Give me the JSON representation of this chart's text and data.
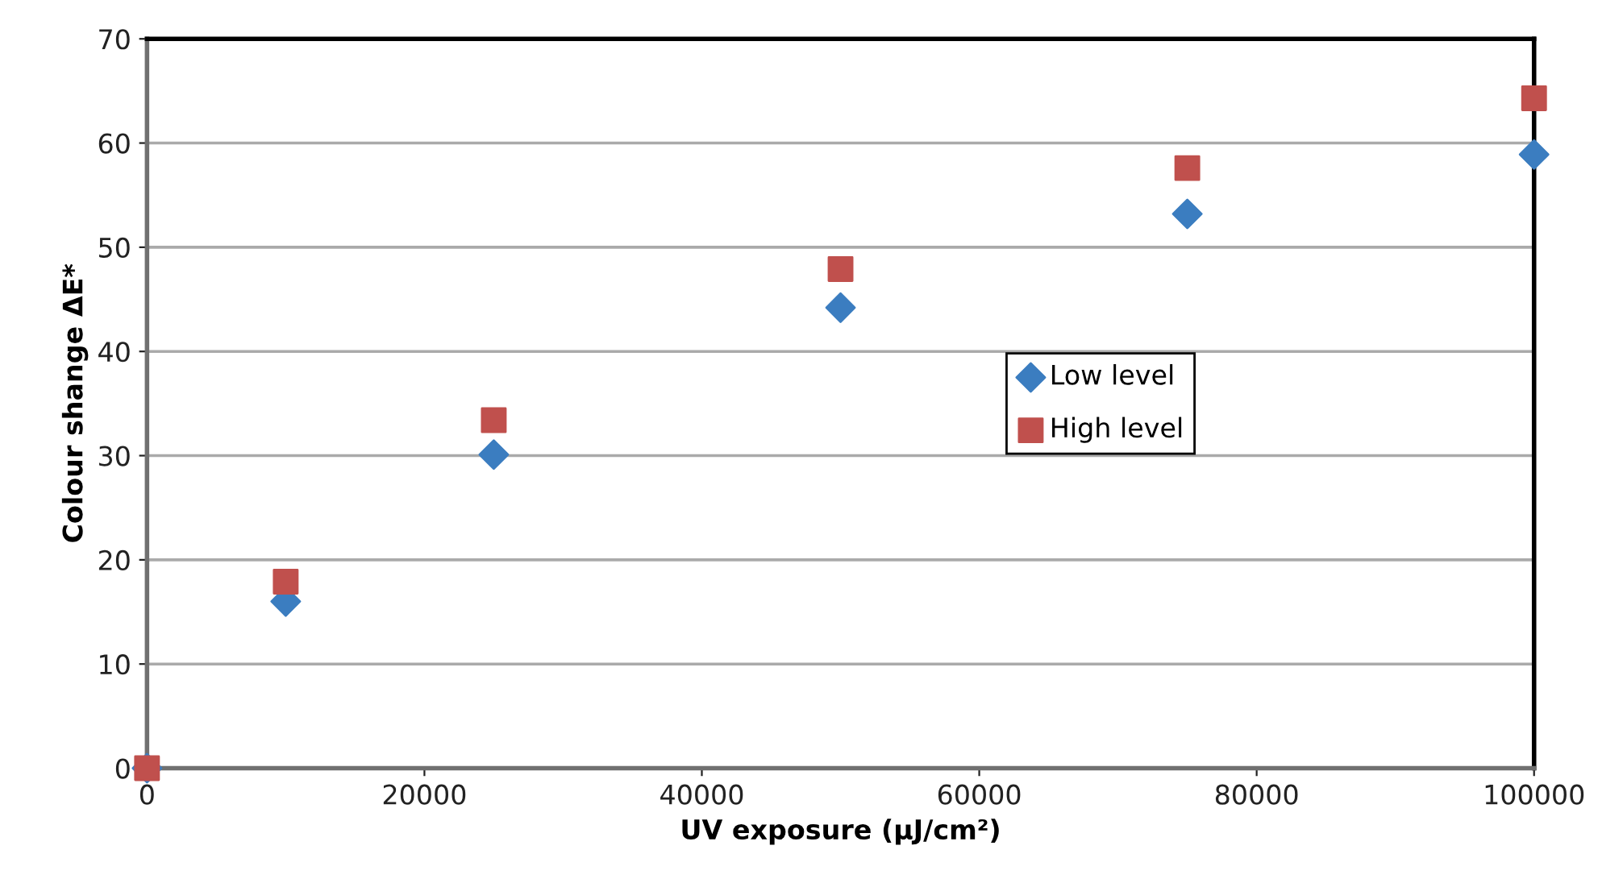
{
  "chart_data": {
    "type": "scatter",
    "xlabel": "UV exposure (µJ/cm²)",
    "ylabel": "Colour shange ΔE*",
    "x": [
      0,
      10000,
      25000,
      50000,
      75000,
      100000
    ],
    "series": [
      {
        "name": "Low level",
        "color": "#3b7dc0",
        "marker": "diamond",
        "values": [
          0,
          16,
          30.1,
          44.2,
          53.2,
          58.9
        ]
      },
      {
        "name": "High level",
        "color": "#c0504d",
        "marker": "square",
        "values": [
          0,
          17.9,
          33.4,
          47.9,
          57.6,
          64.3
        ]
      }
    ],
    "xlim": [
      0,
      100000
    ],
    "xticks": [
      0,
      20000,
      40000,
      60000,
      80000,
      100000
    ],
    "ylim": [
      0,
      70
    ],
    "yticks": [
      0,
      10,
      20,
      30,
      40,
      50,
      60,
      70
    ],
    "grid": "y",
    "legend": "right"
  }
}
